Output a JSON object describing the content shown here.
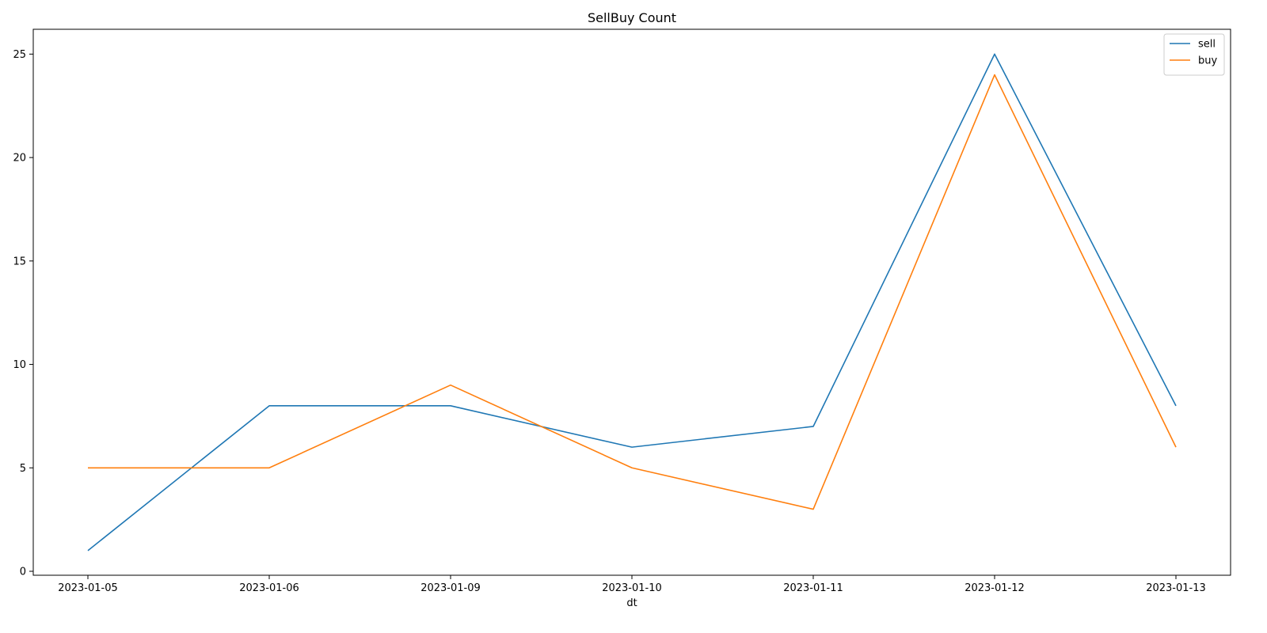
{
  "chart_data": {
    "type": "line",
    "title": "SellBuy Count",
    "xlabel": "dt",
    "ylabel": "",
    "x": [
      "2023-01-05",
      "2023-01-06",
      "2023-01-09",
      "2023-01-10",
      "2023-01-11",
      "2023-01-12",
      "2023-01-13"
    ],
    "ylim": [
      0,
      26.2
    ],
    "yticks": [
      0,
      5,
      10,
      15,
      20,
      25
    ],
    "grid": false,
    "legend": "top-right",
    "series": [
      {
        "name": "sell",
        "color": "#1f77b4",
        "values": [
          1,
          8,
          8,
          6,
          7,
          25,
          8
        ]
      },
      {
        "name": "buy",
        "color": "#ff7f0e",
        "values": [
          5,
          5,
          9,
          5,
          3,
          24,
          6
        ]
      }
    ]
  }
}
